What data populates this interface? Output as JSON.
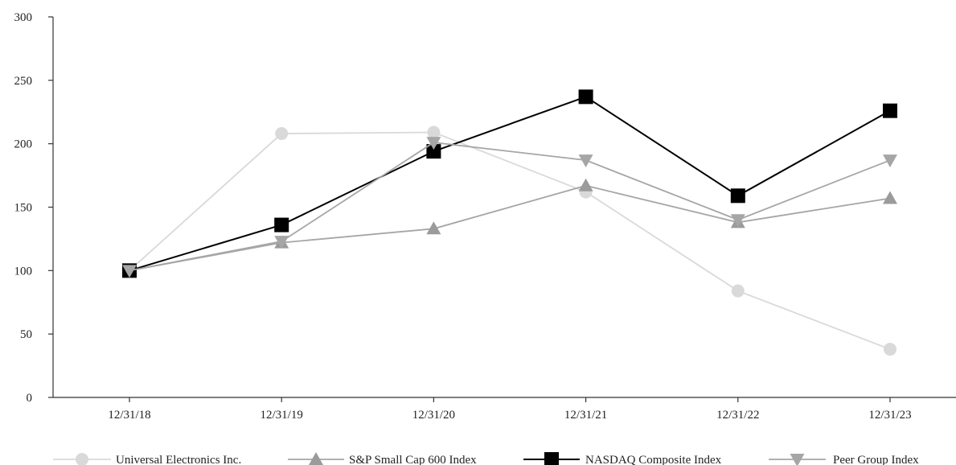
{
  "chart_data": {
    "type": "line",
    "title": "",
    "xlabel": "",
    "ylabel": "",
    "categories": [
      "12/31/18",
      "12/31/19",
      "12/31/20",
      "12/31/21",
      "12/31/22",
      "12/31/23"
    ],
    "ylim": [
      0,
      300
    ],
    "yticks": [
      0,
      50,
      100,
      150,
      200,
      250,
      300
    ],
    "grid": false,
    "legend_position": "bottom",
    "series": [
      {
        "name": "Universal Electronics Inc.",
        "marker": "circle",
        "color": "#d9d9d9",
        "line_color": "#d9d9d9",
        "values": [
          100,
          208,
          209,
          162,
          84,
          38
        ]
      },
      {
        "name": "S&P Small Cap 600 Index",
        "marker": "triangle-up",
        "color": "#9b9b9b",
        "line_color": "#a6a6a6",
        "values": [
          100,
          122,
          133,
          167,
          138,
          157
        ]
      },
      {
        "name": "NASDAQ Composite Index",
        "marker": "square",
        "color": "#000000",
        "line_color": "#000000",
        "values": [
          100,
          136,
          194,
          237,
          159,
          226
        ]
      },
      {
        "name": "Peer Group Index",
        "marker": "triangle-down",
        "color": "#a6a6a6",
        "line_color": "#a6a6a6",
        "values": [
          100,
          123,
          201,
          187,
          140,
          187
        ]
      }
    ]
  }
}
